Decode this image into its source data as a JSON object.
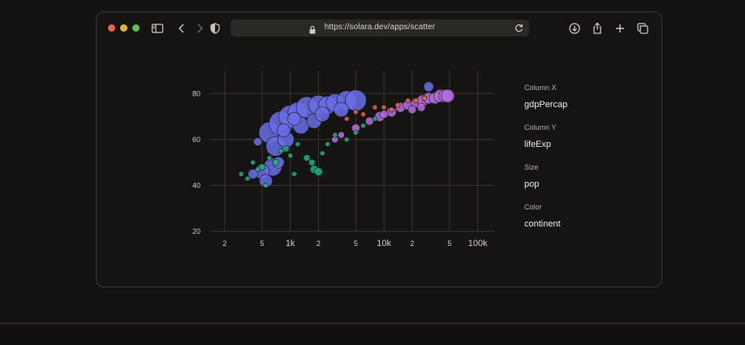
{
  "browser": {
    "url": "https://solara.dev/apps/scatter",
    "icons": [
      "sidebar-icon",
      "back-icon",
      "forward-icon",
      "shield-icon",
      "lock-icon",
      "reload-icon",
      "download-icon",
      "share-icon",
      "new-tab-icon",
      "tabs-overview-icon"
    ]
  },
  "controls": [
    {
      "label": "Column X",
      "value": "gdpPercap"
    },
    {
      "label": "Column Y",
      "value": "lifeExp"
    },
    {
      "label": "Size",
      "value": "pop"
    },
    {
      "label": "Color",
      "value": "continent"
    }
  ],
  "chart_data": {
    "type": "scatter",
    "x_scale": "log",
    "xlim": [
      140,
      150000
    ],
    "ylim": [
      20,
      90
    ],
    "x_tick_labels": [
      {
        "value": 200,
        "label": "2"
      },
      {
        "value": 500,
        "label": "5"
      },
      {
        "value": 1000,
        "label": "1k"
      },
      {
        "value": 2000,
        "label": "2"
      },
      {
        "value": 5000,
        "label": "5"
      },
      {
        "value": 10000,
        "label": "10k"
      },
      {
        "value": 20000,
        "label": "2"
      },
      {
        "value": 50000,
        "label": "5"
      },
      {
        "value": 100000,
        "label": "100k"
      }
    ],
    "y_ticks": [
      20,
      40,
      60,
      80
    ],
    "grid": true,
    "series": [
      {
        "color": "#6a6ee8",
        "x": [
          600,
          800,
          1000,
          1200,
          1500,
          2000,
          2500,
          3000,
          4000,
          5000,
          700,
          900,
          1300,
          1800,
          650,
          500,
          550,
          3500,
          2200,
          1100,
          750,
          850,
          400,
          450,
          30000
        ],
        "y": [
          63,
          67,
          70,
          72,
          74,
          75,
          75,
          76,
          77,
          77,
          57,
          60,
          66,
          68,
          48,
          46,
          42,
          73,
          71,
          69,
          50,
          64,
          45,
          59,
          83
        ],
        "size": [
          13,
          15,
          14,
          12,
          13,
          12,
          11,
          11,
          12,
          13,
          12,
          10,
          10,
          9,
          11,
          9,
          8,
          9,
          9,
          8,
          7,
          8,
          6,
          5,
          6
        ]
      },
      {
        "color": "#b46fe0",
        "x": [
          5000,
          7000,
          9000,
          12000,
          15000,
          18000,
          22000,
          26000,
          30000,
          35000,
          40000,
          45000,
          48000,
          20000,
          25000,
          10000,
          3500,
          3000
        ],
        "y": [
          65,
          68,
          70,
          72,
          74,
          75,
          76,
          77,
          78,
          78,
          79,
          79,
          79,
          73,
          74,
          71,
          62,
          60
        ],
        "size": [
          5,
          5,
          6,
          6,
          6,
          6,
          6,
          7,
          7,
          7,
          8,
          8,
          8,
          5,
          5,
          5,
          4,
          4
        ]
      },
      {
        "color": "#1fae82",
        "x": [
          300,
          350,
          400,
          500,
          600,
          700,
          800,
          900,
          1000,
          1200,
          1500,
          1800,
          2000,
          2500,
          3000,
          4000,
          5000,
          6000,
          8000,
          450,
          550,
          1100,
          1700,
          2200
        ],
        "y": [
          45,
          43,
          50,
          48,
          52,
          50,
          55,
          56,
          53,
          58,
          52,
          47,
          46,
          58,
          62,
          60,
          63,
          66,
          69,
          47,
          40,
          45,
          50,
          54
        ],
        "size": [
          3,
          3,
          3,
          4,
          3,
          4,
          3,
          4,
          3,
          3,
          4,
          5,
          5,
          3,
          3,
          3,
          3,
          3,
          3,
          3,
          3,
          3,
          4,
          3
        ]
      },
      {
        "color": "#e0644a",
        "x": [
          4000,
          6000,
          8000,
          10000,
          14000,
          18000,
          22000,
          27000,
          5000,
          12000
        ],
        "y": [
          69,
          71,
          74,
          74,
          75,
          77,
          77,
          78,
          72,
          73
        ],
        "size": [
          3,
          3,
          3,
          3,
          3,
          3,
          3,
          3,
          3,
          3
        ]
      }
    ]
  }
}
